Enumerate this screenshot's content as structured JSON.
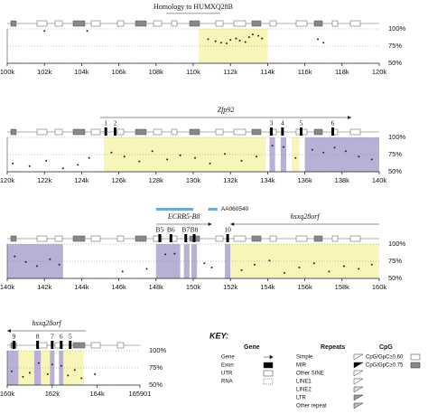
{
  "chart_data": [
    {
      "type": "scatter",
      "title": "Homology to HUMXQ28B",
      "xlim": [
        100000,
        120000
      ],
      "xticks": [
        {
          "value": 100000,
          "label": "100k"
        },
        {
          "value": 102000,
          "label": "102k"
        },
        {
          "value": 104000,
          "label": "104k"
        },
        {
          "value": 106000,
          "label": "106k"
        },
        {
          "value": 108000,
          "label": "108k"
        },
        {
          "value": 110000,
          "label": "110k"
        },
        {
          "value": 112000,
          "label": "112k"
        },
        {
          "value": 114000,
          "label": "114k"
        },
        {
          "value": 116000,
          "label": "116k"
        },
        {
          "value": 118000,
          "label": "118k"
        },
        {
          "value": 120000,
          "label": "120k"
        }
      ],
      "ylim": [
        50,
        100
      ],
      "yticks": [
        {
          "value": 50,
          "label": "50%"
        },
        {
          "value": 75,
          "label": "75%"
        },
        {
          "value": 100,
          "label": "100%"
        }
      ],
      "regions": [
        {
          "start": 110300,
          "end": 114000,
          "color": "#f7f5b8"
        }
      ],
      "x": [
        102000,
        104300,
        110800,
        111200,
        111500,
        111800,
        112000,
        112300,
        112500,
        112800,
        113000,
        113200,
        113500,
        113700,
        116700,
        117000
      ],
      "values": [
        97,
        97,
        85,
        82,
        80,
        79,
        84,
        86,
        83,
        81,
        88,
        92,
        90,
        86,
        85,
        80
      ],
      "color": "#222"
    },
    {
      "type": "scatter",
      "xlim": [
        120000,
        140000
      ],
      "xticks": [
        {
          "value": 120000,
          "label": "120k"
        },
        {
          "value": 122000,
          "label": "122k"
        },
        {
          "value": 124000,
          "label": "124k"
        },
        {
          "value": 126000,
          "label": "126k"
        },
        {
          "value": 128000,
          "label": "128k"
        },
        {
          "value": 130000,
          "label": "130k"
        },
        {
          "value": 132000,
          "label": "132k"
        },
        {
          "value": 134000,
          "label": "134k"
        },
        {
          "value": 136000,
          "label": "136k"
        },
        {
          "value": 138000,
          "label": "138k"
        },
        {
          "value": 140000,
          "label": "140k"
        }
      ],
      "ylim": [
        50,
        100
      ],
      "yticks": [
        {
          "value": 50,
          "label": "50%"
        },
        {
          "value": 75,
          "label": "75%"
        },
        {
          "value": 100,
          "label": "100%"
        }
      ],
      "regions": [
        {
          "start": 125200,
          "end": 133900,
          "color": "#f7f5b8"
        },
        {
          "start": 134100,
          "end": 134400,
          "color": "#b9b0d8"
        },
        {
          "start": 134700,
          "end": 135000,
          "color": "#b9b0d8"
        },
        {
          "start": 135300,
          "end": 135700,
          "color": "#f7f5b8"
        },
        {
          "start": 136000,
          "end": 140000,
          "color": "#b9b0d8"
        }
      ],
      "genes": [
        {
          "name": "Zfp92",
          "start": 125000,
          "end": 138500
        }
      ],
      "exons": [
        {
          "label": "1",
          "x": 125300
        },
        {
          "label": "2",
          "x": 125800
        },
        {
          "label": "3",
          "x": 134200
        },
        {
          "label": "4",
          "x": 134800
        },
        {
          "label": "5",
          "x": 135800
        },
        {
          "label": "6",
          "x": 137500
        }
      ],
      "x": [
        120300,
        121200,
        122100,
        123000,
        123800,
        124400,
        125600,
        126300,
        127100,
        127800,
        128600,
        129300,
        130100,
        130900,
        131700,
        132600,
        133400,
        134250,
        134850,
        135500,
        136400,
        137000,
        137600,
        138200,
        138900,
        139600
      ],
      "values": [
        62,
        58,
        66,
        55,
        60,
        70,
        78,
        72,
        65,
        80,
        68,
        74,
        70,
        62,
        76,
        66,
        72,
        88,
        86,
        70,
        82,
        78,
        85,
        80,
        72,
        68
      ],
      "color": "#222"
    },
    {
      "type": "scatter",
      "xlim": [
        140000,
        160000
      ],
      "xticks": [
        {
          "value": 140000,
          "label": "140k"
        },
        {
          "value": 142000,
          "label": "142k"
        },
        {
          "value": 144000,
          "label": "144k"
        },
        {
          "value": 146000,
          "label": "146k"
        },
        {
          "value": 148000,
          "label": "148k"
        },
        {
          "value": 150000,
          "label": "150k"
        },
        {
          "value": 152000,
          "label": "152k"
        },
        {
          "value": 154000,
          "label": "154k"
        },
        {
          "value": 156000,
          "label": "156k"
        },
        {
          "value": 158000,
          "label": "158k"
        },
        {
          "value": 160000,
          "label": "160k"
        }
      ],
      "ylim": [
        50,
        100
      ],
      "yticks": [
        {
          "value": 50,
          "label": "50%"
        },
        {
          "value": 75,
          "label": "75%"
        },
        {
          "value": 100,
          "label": "100%"
        }
      ],
      "regions": [
        {
          "start": 140000,
          "end": 143000,
          "color": "#b9b0d8"
        },
        {
          "start": 148000,
          "end": 149300,
          "color": "#b9b0d8"
        },
        {
          "start": 149500,
          "end": 149800,
          "color": "#b9b0d8"
        },
        {
          "start": 149900,
          "end": 150200,
          "color": "#b9b0d8"
        },
        {
          "start": 151700,
          "end": 152000,
          "color": "#b9b0d8"
        },
        {
          "start": 152000,
          "end": 160000,
          "color": "#f7f5b8"
        }
      ],
      "genes": [
        {
          "name": "ECRB5-B8",
          "start": 148000,
          "end": 151000
        },
        {
          "name": "hsxq28orf",
          "start": 160000,
          "end": 152000
        }
      ],
      "annotation": "AA060540",
      "exons": [
        {
          "label": "B5",
          "x": 148200
        },
        {
          "label": "B6",
          "x": 148800
        },
        {
          "label": "B7",
          "x": 149600
        },
        {
          "label": "B8",
          "x": 150050
        },
        {
          "label": "10",
          "x": 151850
        }
      ],
      "x": [
        140400,
        141000,
        141600,
        142300,
        142800,
        146200,
        147500,
        148500,
        149000,
        150600,
        151000,
        152600,
        153300,
        154100,
        154900,
        155700,
        156500,
        157300,
        158100,
        158900,
        159600
      ],
      "values": [
        82,
        74,
        68,
        78,
        70,
        60,
        64,
        85,
        86,
        72,
        66,
        62,
        70,
        76,
        58,
        66,
        72,
        60,
        68,
        64,
        70
      ],
      "color": "#222"
    },
    {
      "type": "scatter",
      "xlim": [
        160000,
        165901
      ],
      "xticks": [
        {
          "value": 160000,
          "label": "160k"
        },
        {
          "value": 162000,
          "label": "162k"
        },
        {
          "value": 164000,
          "label": "164k"
        },
        {
          "value": 165901,
          "label": "165901"
        }
      ],
      "ylim": [
        50,
        100
      ],
      "yticks": [
        {
          "value": 50,
          "label": "50%"
        },
        {
          "value": 75,
          "label": "75%"
        },
        {
          "value": 100,
          "label": "100%"
        }
      ],
      "regions": [
        {
          "start": 160000,
          "end": 160500,
          "color": "#b9b0d8"
        },
        {
          "start": 160500,
          "end": 161200,
          "color": "#f7f5b8"
        },
        {
          "start": 161200,
          "end": 161500,
          "color": "#b9b0d8"
        },
        {
          "start": 161500,
          "end": 161900,
          "color": "#f7f5b8"
        },
        {
          "start": 161900,
          "end": 162100,
          "color": "#b9b0d8"
        },
        {
          "start": 162300,
          "end": 162500,
          "color": "#b9b0d8"
        },
        {
          "start": 162500,
          "end": 163400,
          "color": "#f7f5b8"
        }
      ],
      "genes": [
        {
          "name": "hsxq28orf",
          "start": 163500,
          "end": 160000
        }
      ],
      "exons": [
        {
          "label": "9",
          "x": 160300
        },
        {
          "label": "8",
          "x": 161350
        },
        {
          "label": "7",
          "x": 162000
        },
        {
          "label": "6",
          "x": 162400
        },
        {
          "label": "5",
          "x": 162800
        }
      ],
      "x": [
        160200,
        160700,
        161000,
        161400,
        161800,
        162000,
        162400,
        162700,
        163000,
        163300,
        163900
      ],
      "values": [
        70,
        62,
        68,
        82,
        66,
        80,
        78,
        64,
        72,
        60,
        66
      ],
      "color": "#222"
    }
  ],
  "key": {
    "title": "KEY:",
    "columns": [
      {
        "heading": "Gene",
        "items": [
          "Gene",
          "Exon",
          "UTR",
          "RNA"
        ]
      },
      {
        "heading": "Repeats",
        "items": [
          "Simple",
          "MIR",
          "Other SINE",
          "LINE1",
          "LINE2",
          "LTR",
          "Other repeat"
        ]
      },
      {
        "heading": "CpG",
        "items": [
          "CpG/GpC≥0.60",
          "CpG/GpC≥0.75"
        ]
      }
    ]
  }
}
